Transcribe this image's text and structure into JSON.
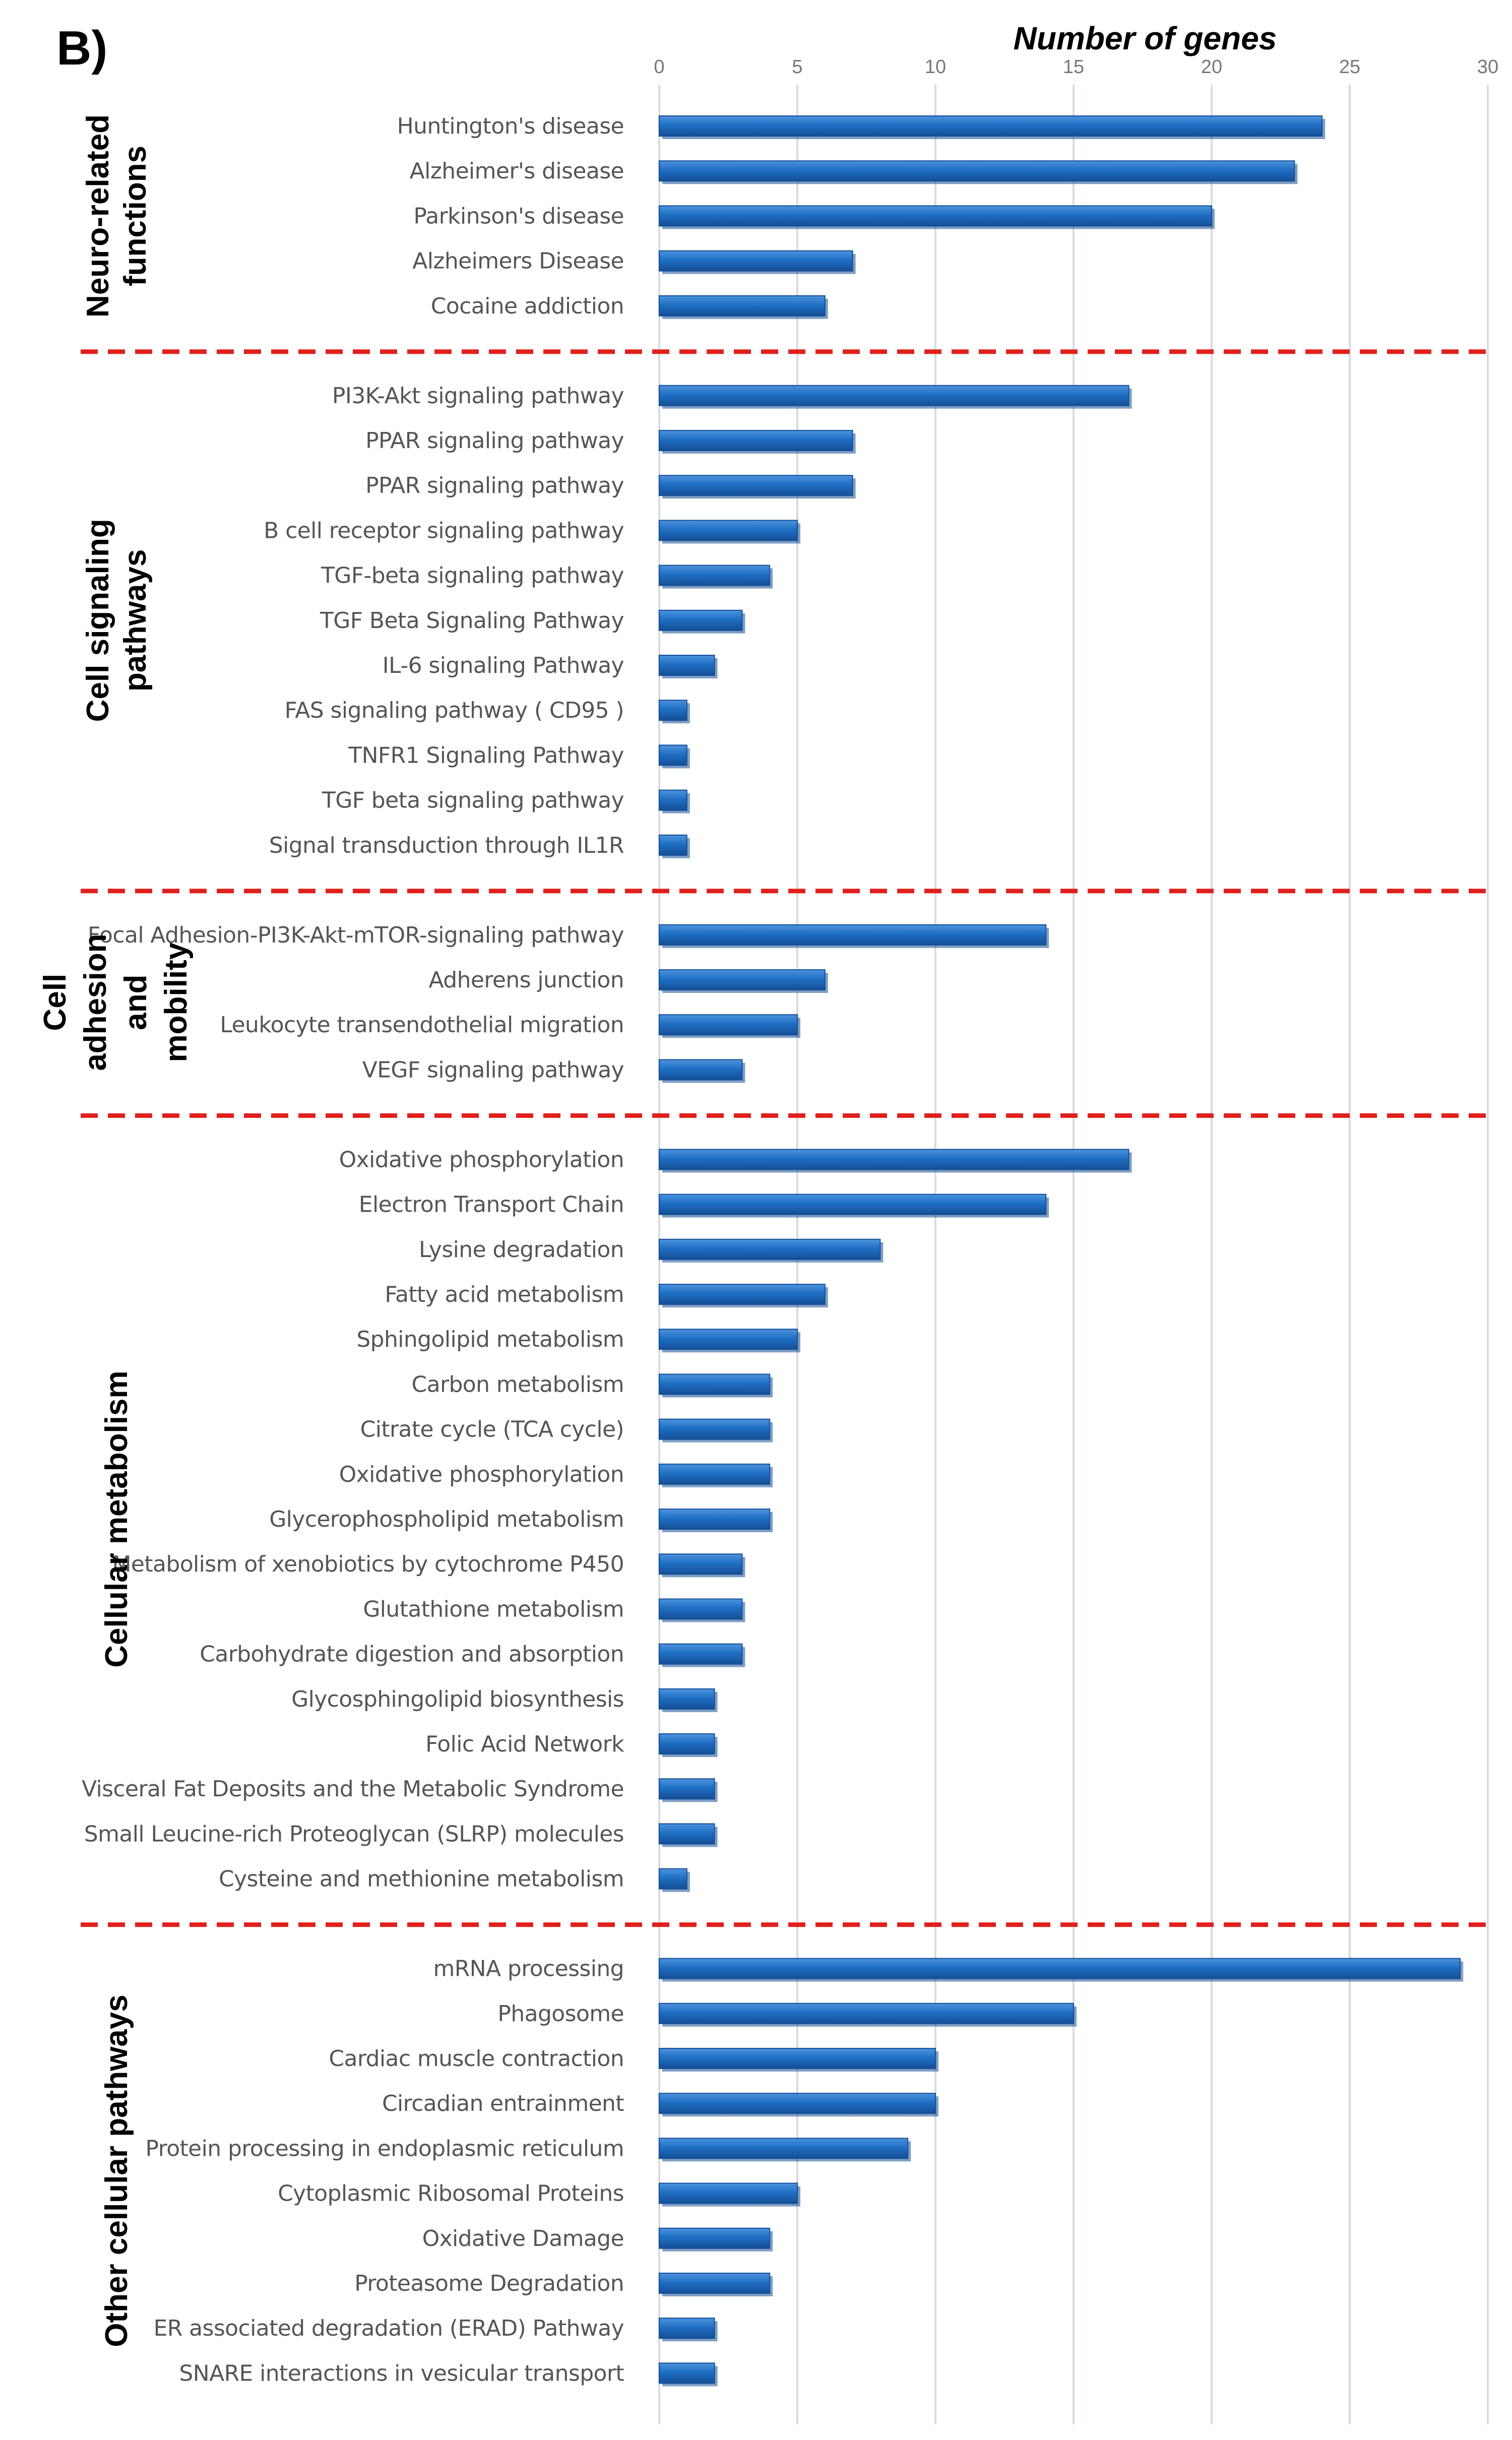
{
  "panel_label": "B)",
  "chart_data": {
    "type": "bar",
    "orientation": "horizontal",
    "title": "",
    "xlabel": "Number of genes",
    "ylabel": "",
    "xlim": [
      0,
      30
    ],
    "xticks": [
      0,
      5,
      10,
      15,
      20,
      25,
      30
    ],
    "grid": true,
    "legend": "none",
    "colors": {
      "bar": "#1f6fc5",
      "bar_shade": "#154f96",
      "separator": "#e0201b",
      "grid": "#d6dce4"
    },
    "groups": [
      {
        "name": "Neuro-related functions",
        "name_lines": [
          "Neuro-related",
          "functions"
        ],
        "items": [
          {
            "label": "Huntington's disease",
            "value": 24
          },
          {
            "label": "Alzheimer's disease",
            "value": 23
          },
          {
            "label": "Parkinson's disease",
            "value": 20
          },
          {
            "label": "Alzheimers Disease",
            "value": 7
          },
          {
            "label": "Cocaine addiction",
            "value": 6
          }
        ]
      },
      {
        "name": "Cell signaling pathways",
        "name_lines": [
          "Cell signaling",
          "pathways"
        ],
        "items": [
          {
            "label": "PI3K-Akt signaling pathway",
            "value": 17
          },
          {
            "label": "PPAR signaling pathway",
            "value": 7
          },
          {
            "label": "PPAR signaling pathway",
            "value": 7
          },
          {
            "label": "B cell receptor signaling pathway",
            "value": 5
          },
          {
            "label": "TGF-beta signaling pathway",
            "value": 4
          },
          {
            "label": "TGF Beta Signaling Pathway",
            "value": 3
          },
          {
            "label": "IL-6 signaling Pathway",
            "value": 2
          },
          {
            "label": "FAS signaling pathway ( CD95 )",
            "value": 1
          },
          {
            "label": "TNFR1 Signaling Pathway",
            "value": 1
          },
          {
            "label": "TGF beta signaling pathway",
            "value": 1
          },
          {
            "label": "Signal transduction through IL1R",
            "value": 1
          }
        ]
      },
      {
        "name": "Cell adhesion and mobility",
        "name_lines": [
          "Cell",
          "adhesion",
          "and",
          "mobility"
        ],
        "items": [
          {
            "label": "Focal Adhesion-PI3K-Akt-mTOR-signaling pathway",
            "value": 14
          },
          {
            "label": "Adherens junction",
            "value": 6
          },
          {
            "label": "Leukocyte transendothelial migration",
            "value": 5
          },
          {
            "label": "VEGF signaling pathway",
            "value": 3
          }
        ]
      },
      {
        "name": "Cellular metabolism",
        "name_lines": [
          "Cellular metabolism"
        ],
        "items": [
          {
            "label": "Oxidative phosphorylation",
            "value": 17
          },
          {
            "label": "Electron Transport Chain",
            "value": 14
          },
          {
            "label": "Lysine degradation",
            "value": 8
          },
          {
            "label": "Fatty acid metabolism",
            "value": 6
          },
          {
            "label": "Sphingolipid metabolism",
            "value": 5
          },
          {
            "label": "Carbon metabolism",
            "value": 4
          },
          {
            "label": "Citrate cycle (TCA cycle)",
            "value": 4
          },
          {
            "label": "Oxidative phosphorylation",
            "value": 4
          },
          {
            "label": "Glycerophospholipid metabolism",
            "value": 4
          },
          {
            "label": "Metabolism of xenobiotics by cytochrome P450",
            "value": 3
          },
          {
            "label": "Glutathione metabolism",
            "value": 3
          },
          {
            "label": "Carbohydrate digestion and absorption",
            "value": 3
          },
          {
            "label": "Glycosphingolipid biosynthesis",
            "value": 2
          },
          {
            "label": "Folic Acid Network",
            "value": 2
          },
          {
            "label": "Visceral Fat Deposits and the Metabolic Syndrome",
            "value": 2
          },
          {
            "label": "Small Leucine-rich Proteoglycan (SLRP) molecules",
            "value": 2
          },
          {
            "label": "Cysteine and methionine metabolism",
            "value": 1
          }
        ]
      },
      {
        "name": "Other cellular pathways",
        "name_lines": [
          "Other cellular pathways"
        ],
        "items": [
          {
            "label": "mRNA processing",
            "value": 29
          },
          {
            "label": "Phagosome",
            "value": 15
          },
          {
            "label": "Cardiac muscle contraction",
            "value": 10
          },
          {
            "label": "Circadian entrainment",
            "value": 10
          },
          {
            "label": "Protein processing in endoplasmic reticulum",
            "value": 9
          },
          {
            "label": "Cytoplasmic Ribosomal Proteins",
            "value": 5
          },
          {
            "label": "Oxidative Damage",
            "value": 4
          },
          {
            "label": "Proteasome Degradation",
            "value": 4
          },
          {
            "label": "ER  associated degradation (ERAD) Pathway",
            "value": 2
          },
          {
            "label": "SNARE interactions in vesicular transport",
            "value": 2
          }
        ]
      }
    ]
  }
}
